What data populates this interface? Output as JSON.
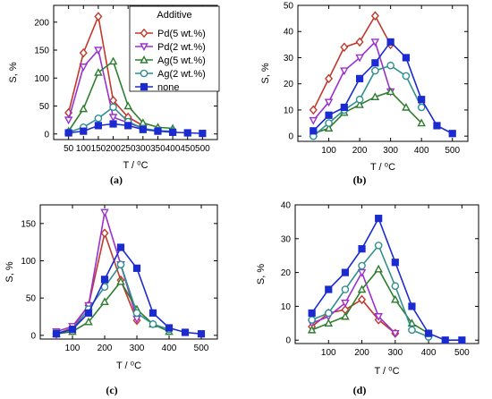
{
  "legend": {
    "title": "Additive",
    "entries": [
      "Pd(5 wt.%)",
      "Pd(2 wt.%)",
      "Ag(5 wt.%)",
      "Ag(2 wt.%)",
      "none"
    ]
  },
  "series_styles": [
    {
      "color": "#c0392b",
      "marker": "diamond"
    },
    {
      "color": "#9b30d0",
      "marker": "tri-down"
    },
    {
      "color": "#2e7d2e",
      "marker": "tri-up"
    },
    {
      "color": "#2f8f8f",
      "marker": "circle"
    },
    {
      "color": "#1b2bd1",
      "marker": "square"
    }
  ],
  "chart_data": [
    {
      "type": "line",
      "panel_label": "(a)",
      "xlabel": "T / ⁰C",
      "ylabel": "S, %",
      "xlim": [
        0,
        550
      ],
      "ylim": [
        -10,
        230
      ],
      "xticks": [
        0,
        50,
        100,
        150,
        200,
        250,
        300,
        350,
        400,
        450,
        500
      ],
      "yticks": [
        0,
        50,
        100,
        150,
        200
      ],
      "tick_labels_x": [
        "",
        "50",
        "100",
        "150",
        "200",
        "250",
        "300",
        "350",
        "400",
        "450",
        "500"
      ],
      "legend_position": "top-right",
      "series": [
        {
          "name": "Pd(5 wt.%)",
          "x": [
            50,
            100,
            150,
            200,
            250,
            300
          ],
          "y": [
            38,
            145,
            210,
            60,
            30,
            15
          ]
        },
        {
          "name": "Pd(2 wt.%)",
          "x": [
            50,
            100,
            150,
            200,
            250,
            300
          ],
          "y": [
            25,
            120,
            150,
            30,
            20,
            10
          ]
        },
        {
          "name": "Ag(5 wt.%)",
          "x": [
            50,
            100,
            150,
            200,
            250,
            300,
            350,
            400
          ],
          "y": [
            5,
            45,
            110,
            130,
            50,
            20,
            12,
            10
          ]
        },
        {
          "name": "Ag(2 wt.%)",
          "x": [
            50,
            100,
            150,
            200,
            250,
            300,
            350,
            400
          ],
          "y": [
            3,
            12,
            28,
            48,
            22,
            10,
            6,
            5
          ]
        },
        {
          "name": "none",
          "x": [
            50,
            100,
            150,
            200,
            250,
            300,
            350,
            400,
            450,
            500
          ],
          "y": [
            2,
            5,
            15,
            18,
            15,
            8,
            5,
            3,
            2,
            1
          ]
        }
      ]
    },
    {
      "type": "line",
      "panel_label": "(b)",
      "xlabel": "T / ⁰C",
      "ylabel": "S, %",
      "xlim": [
        0,
        550
      ],
      "ylim": [
        -2,
        50
      ],
      "xticks": [
        0,
        100,
        200,
        300,
        400,
        500
      ],
      "yticks": [
        0,
        10,
        20,
        30,
        40,
        50
      ],
      "tick_labels_x": [
        "",
        "100",
        "200",
        "300",
        "400",
        "500"
      ],
      "series": [
        {
          "name": "Pd(5 wt.%)",
          "x": [
            50,
            100,
            150,
            200,
            250,
            300
          ],
          "y": [
            10,
            22,
            34,
            36,
            46,
            35
          ]
        },
        {
          "name": "Pd(2 wt.%)",
          "x": [
            50,
            100,
            150,
            200,
            250,
            300
          ],
          "y": [
            6,
            13,
            25,
            30,
            36,
            17
          ]
        },
        {
          "name": "Ag(5 wt.%)",
          "x": [
            50,
            100,
            150,
            200,
            250,
            300,
            350,
            400
          ],
          "y": [
            1,
            3,
            9,
            12,
            15,
            17,
            11,
            5
          ]
        },
        {
          "name": "Ag(2 wt.%)",
          "x": [
            50,
            100,
            150,
            200,
            250,
            300,
            350,
            400
          ],
          "y": [
            0,
            5,
            10,
            14,
            25,
            27,
            23,
            11
          ]
        },
        {
          "name": "none",
          "x": [
            50,
            100,
            150,
            200,
            250,
            300,
            350,
            400,
            450,
            500
          ],
          "y": [
            2,
            8,
            11,
            22,
            28,
            36,
            30,
            14,
            4,
            1
          ]
        }
      ]
    },
    {
      "type": "line",
      "panel_label": "(c)",
      "xlabel": "T / ⁰C",
      "ylabel": "S, %",
      "xlim": [
        0,
        550
      ],
      "ylim": [
        -5,
        175
      ],
      "xticks": [
        0,
        100,
        200,
        300,
        400,
        500
      ],
      "yticks": [
        0,
        50,
        100,
        150
      ],
      "tick_labels_x": [
        "",
        "100",
        "200",
        "300",
        "400",
        "500"
      ],
      "series": [
        {
          "name": "Pd(5 wt.%)",
          "x": [
            50,
            100,
            150,
            200,
            250,
            300
          ],
          "y": [
            2,
            10,
            40,
            137,
            74,
            20
          ]
        },
        {
          "name": "Pd(2 wt.%)",
          "x": [
            50,
            100,
            150,
            200,
            250,
            300
          ],
          "y": [
            5,
            12,
            40,
            165,
            95,
            22
          ]
        },
        {
          "name": "Ag(5 wt.%)",
          "x": [
            50,
            100,
            150,
            200,
            250,
            300,
            350,
            400
          ],
          "y": [
            2,
            5,
            18,
            45,
            72,
            35,
            15,
            5
          ]
        },
        {
          "name": "Ag(2 wt.%)",
          "x": [
            50,
            100,
            150,
            200,
            250,
            300,
            350,
            400
          ],
          "y": [
            3,
            8,
            35,
            65,
            95,
            30,
            15,
            8
          ]
        },
        {
          "name": "none",
          "x": [
            50,
            100,
            150,
            200,
            250,
            300,
            350,
            400,
            450,
            500
          ],
          "y": [
            2,
            8,
            30,
            75,
            118,
            90,
            30,
            10,
            4,
            2
          ]
        }
      ]
    },
    {
      "type": "line",
      "panel_label": "(d)",
      "xlabel": "T / ⁰C",
      "ylabel": "S, %",
      "xlim": [
        0,
        550
      ],
      "ylim": [
        -1,
        40
      ],
      "xticks": [
        0,
        100,
        200,
        300,
        400,
        500
      ],
      "yticks": [
        0,
        10,
        20,
        30,
        40
      ],
      "tick_labels_x": [
        "",
        "100",
        "200",
        "300",
        "400",
        "500"
      ],
      "series": [
        {
          "name": "Pd(5 wt.%)",
          "x": [
            50,
            100,
            150,
            200,
            250,
            300
          ],
          "y": [
            4,
            8,
            9,
            12,
            6,
            2
          ]
        },
        {
          "name": "Pd(2 wt.%)",
          "x": [
            50,
            100,
            150,
            200,
            250,
            300
          ],
          "y": [
            5,
            7,
            11,
            20,
            7,
            2
          ]
        },
        {
          "name": "Ag(5 wt.%)",
          "x": [
            50,
            100,
            150,
            200,
            250,
            300,
            350,
            400
          ],
          "y": [
            3,
            5,
            7,
            15,
            21,
            12,
            5,
            2
          ]
        },
        {
          "name": "Ag(2 wt.%)",
          "x": [
            50,
            100,
            150,
            200,
            250,
            300,
            350,
            400
          ],
          "y": [
            6,
            8,
            15,
            22,
            28,
            16,
            3,
            1
          ]
        },
        {
          "name": "none",
          "x": [
            50,
            100,
            150,
            200,
            250,
            300,
            350,
            400,
            450,
            500
          ],
          "y": [
            8,
            15,
            20,
            27,
            36,
            23,
            10,
            2,
            0,
            0
          ]
        }
      ]
    }
  ]
}
